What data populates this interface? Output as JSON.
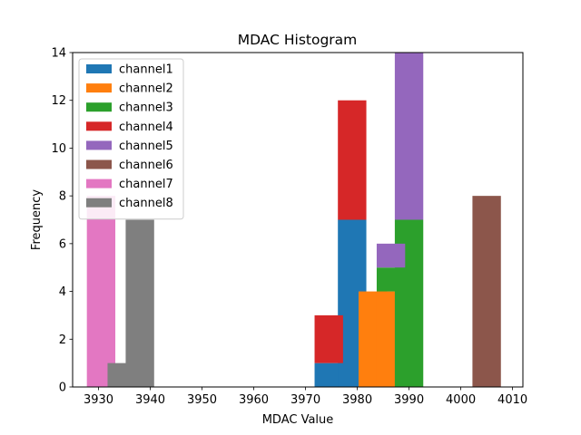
{
  "chart_data": {
    "type": "bar",
    "stacked": true,
    "title": "MDAC Histogram",
    "xlabel": "MDAC Value",
    "ylabel": "Frequency",
    "xlim": [
      3925,
      4012
    ],
    "ylim": [
      0,
      14
    ],
    "xticks": [
      3930,
      3940,
      3950,
      3960,
      3970,
      3980,
      3990,
      4000,
      4010
    ],
    "yticks": [
      0,
      2,
      4,
      6,
      8,
      10,
      12,
      14
    ],
    "bar_width": 5.5,
    "legend_position": "upper-left",
    "series": [
      {
        "name": "channel1",
        "color": "#1f77b4",
        "bars": [
          {
            "x": 3974.5,
            "value": 1
          },
          {
            "x": 3979.0,
            "value": 7
          }
        ]
      },
      {
        "name": "channel2",
        "color": "#ff7f0e",
        "bars": [
          {
            "x": 3983.0,
            "value": 4
          },
          {
            "x": 3986.5,
            "value": 4
          }
        ]
      },
      {
        "name": "channel3",
        "color": "#2ca02c",
        "bars": [
          {
            "x": 3986.5,
            "value": 1
          },
          {
            "x": 3990.0,
            "value": 7
          }
        ]
      },
      {
        "name": "channel4",
        "color": "#d62728",
        "bars": [
          {
            "x": 3974.5,
            "value": 2
          },
          {
            "x": 3979.0,
            "value": 5
          }
        ]
      },
      {
        "name": "channel5",
        "color": "#9467bd",
        "bars": [
          {
            "x": 3986.5,
            "value": 1
          },
          {
            "x": 3990.0,
            "value": 7
          }
        ]
      },
      {
        "name": "channel6",
        "color": "#8c564b",
        "bars": [
          {
            "x": 4005.0,
            "value": 8
          }
        ]
      },
      {
        "name": "channel7",
        "color": "#e377c2",
        "bars": [
          {
            "x": 3930.5,
            "value": 8
          }
        ]
      },
      {
        "name": "channel8",
        "color": "#7f7f7f",
        "bars": [
          {
            "x": 3934.5,
            "value": 1
          },
          {
            "x": 3938.0,
            "value": 7
          }
        ]
      }
    ]
  }
}
